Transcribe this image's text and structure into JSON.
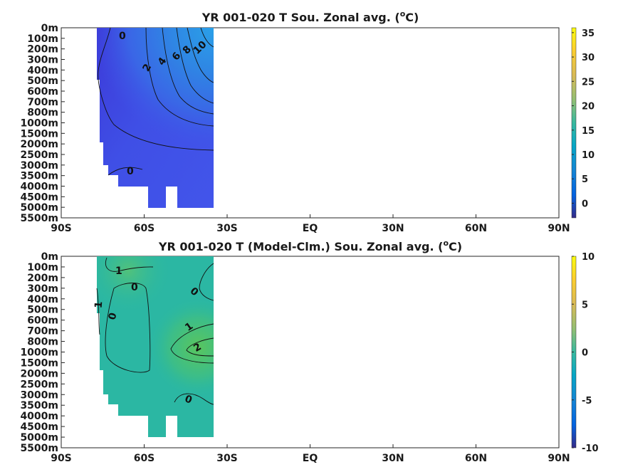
{
  "chart_data": [
    {
      "type": "heatmap",
      "title": "YR 001-020 T Sou. Zonal avg. (",
      "title_sup": "o",
      "title_end": "C)",
      "x_ticks": [
        "90S",
        "60S",
        "30S",
        "EQ",
        "30N",
        "60N",
        "90N"
      ],
      "y_ticks": [
        "0m",
        "100m",
        "200m",
        "300m",
        "400m",
        "500m",
        "600m",
        "700m",
        "800m",
        "1000m",
        "1500m",
        "2000m",
        "2500m",
        "3000m",
        "3500m",
        "4000m",
        "4500m",
        "5000m",
        "5500m"
      ],
      "colorbar_ticks": [
        "35",
        "30",
        "25",
        "20",
        "15",
        "10",
        "5",
        "0"
      ],
      "clim": [
        -3,
        36
      ],
      "data_extent_lat": [
        -78,
        -35
      ],
      "contour_labels": [
        "0",
        "0",
        "2",
        "4",
        "6",
        "8",
        "10"
      ],
      "colormap": "parula"
    },
    {
      "type": "heatmap",
      "title": "YR 001-020 T (Model-Clm.) Sou. Zonal avg. (",
      "title_sup": "o",
      "title_end": "C)",
      "x_ticks": [
        "90S",
        "60S",
        "30S",
        "EQ",
        "30N",
        "60N",
        "90N"
      ],
      "y_ticks": [
        "0m",
        "100m",
        "200m",
        "300m",
        "400m",
        "500m",
        "600m",
        "700m",
        "800m",
        "1000m",
        "1500m",
        "2000m",
        "2500m",
        "3000m",
        "3500m",
        "4000m",
        "4500m",
        "5000m",
        "5500m"
      ],
      "colorbar_ticks": [
        "10",
        "5",
        "0",
        "-5",
        "-10"
      ],
      "clim": [
        -10,
        10
      ],
      "data_extent_lat": [
        -78,
        -35
      ],
      "contour_labels": [
        "1",
        "0",
        "0",
        "1",
        "0",
        "1",
        "2",
        "0"
      ],
      "colormap": "parula"
    }
  ]
}
